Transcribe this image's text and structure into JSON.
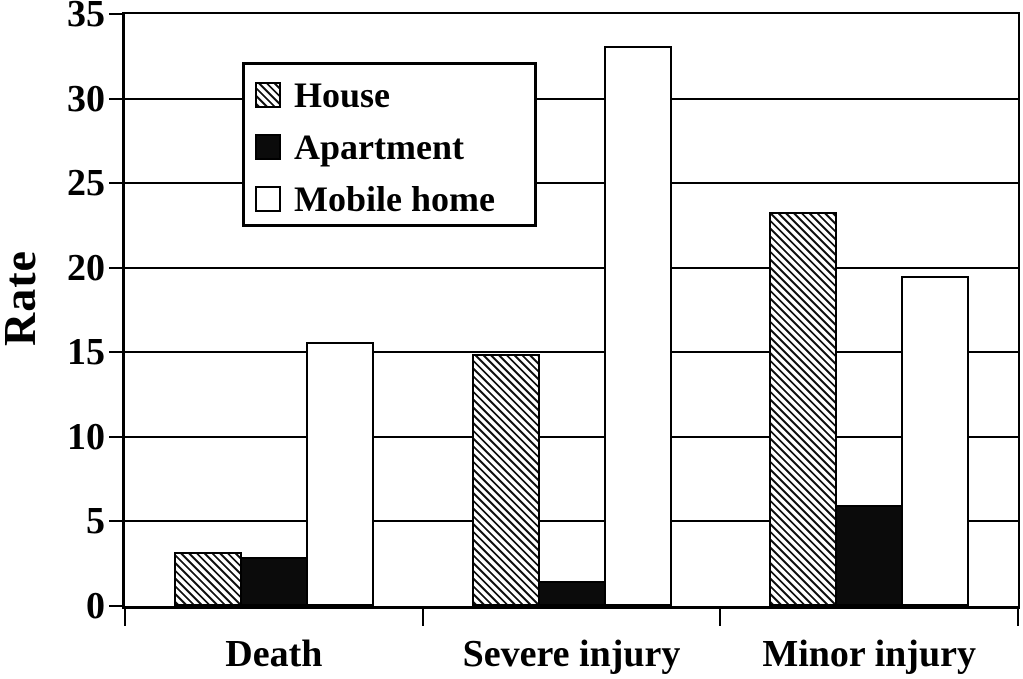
{
  "page": {
    "background": "#ffffff",
    "ink": "#000000"
  },
  "chart_data": {
    "type": "bar",
    "title": "",
    "xlabel": "",
    "ylabel": "Rate",
    "categories": [
      "Death",
      "Severe injury",
      "Minor injury"
    ],
    "series": [
      {
        "name": "House",
        "fill": "hatch",
        "values": [
          3.2,
          14.9,
          23.3
        ]
      },
      {
        "name": "Apartment",
        "fill": "black",
        "values": [
          2.9,
          1.5,
          6.0
        ]
      },
      {
        "name": "Mobile home",
        "fill": "white",
        "values": [
          15.6,
          33.1,
          19.5
        ]
      }
    ],
    "ylim": [
      0,
      35
    ],
    "yticks": [
      0,
      5,
      10,
      15,
      20,
      25,
      30,
      35
    ],
    "grid": true,
    "legend": {
      "position": "upper-left-inside",
      "entries": [
        "House",
        "Apartment",
        "Mobile home"
      ]
    }
  }
}
